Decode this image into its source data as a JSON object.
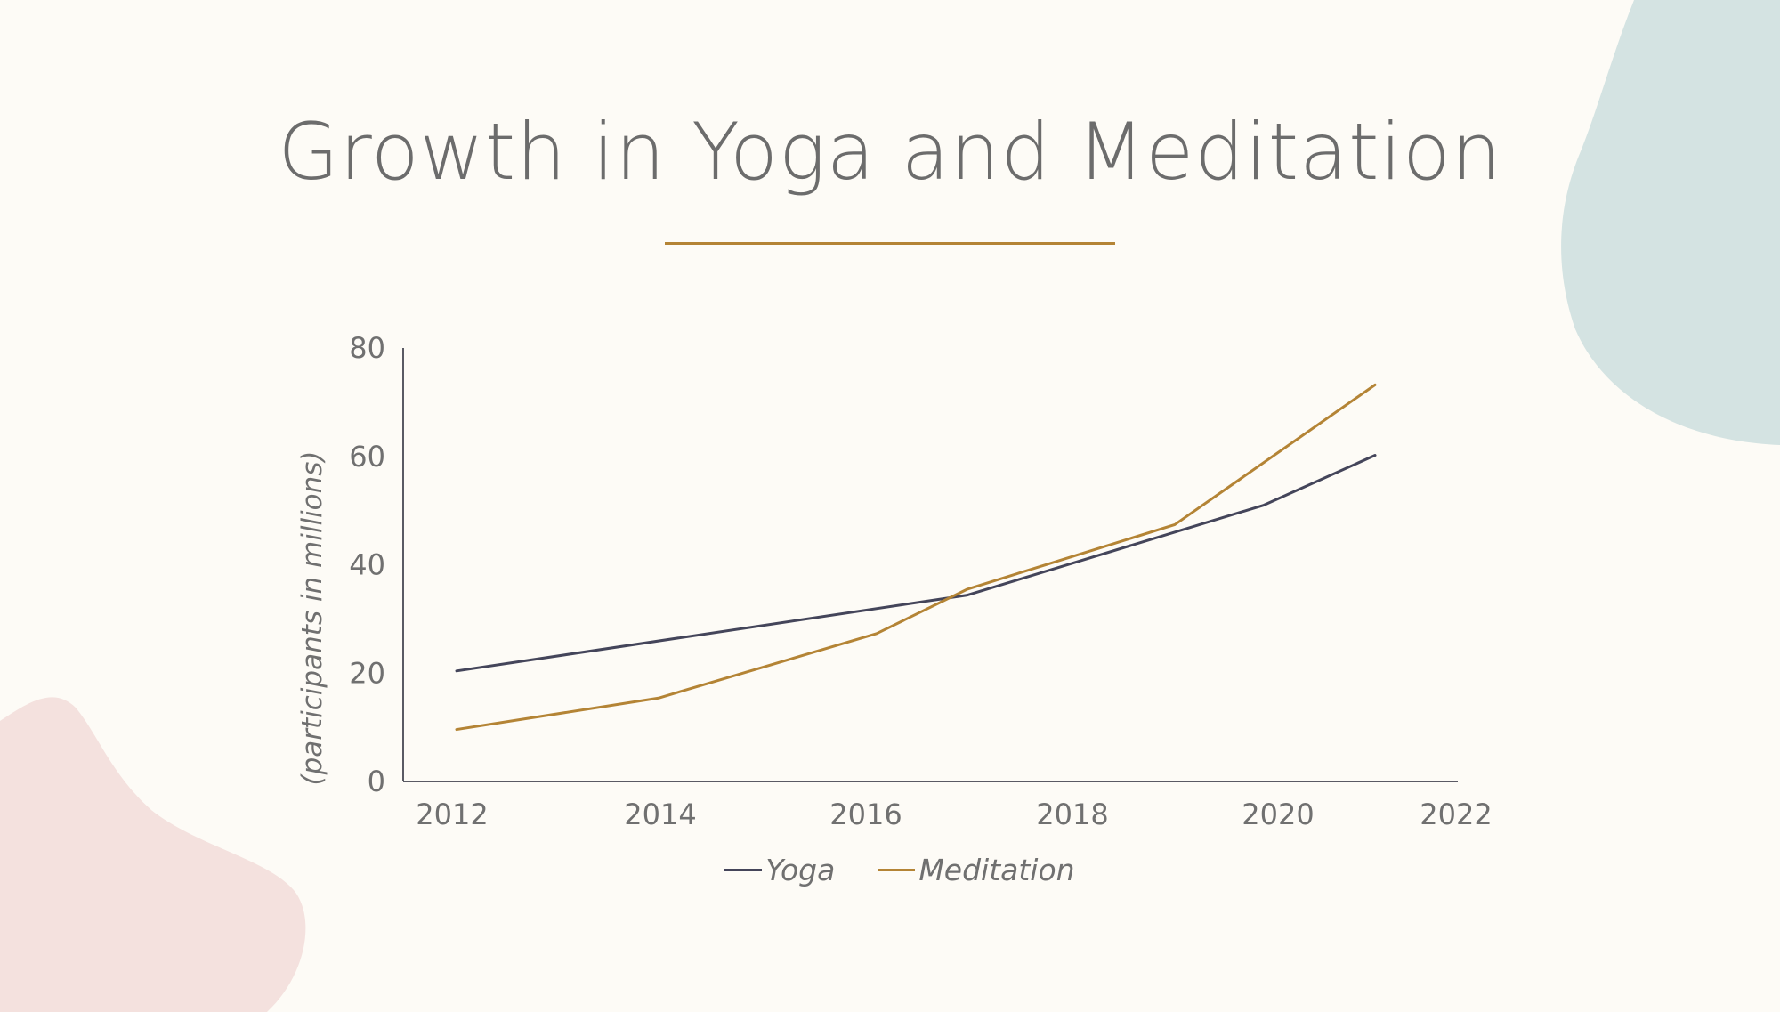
{
  "page": {
    "background": "#fdfbf6",
    "accent_color": "#b48435",
    "blob_colors": [
      "#d4e3e2",
      "#f4e1de"
    ]
  },
  "chart_data": {
    "type": "line",
    "title": "Growth in Yoga and Meditation",
    "xlabel": "",
    "ylabel": "(participants in millions)",
    "xlim": [
      2012,
      2022
    ],
    "ylim": [
      0,
      80
    ],
    "xticks": [
      2012,
      2014,
      2016,
      2018,
      2020,
      2022
    ],
    "yticks": [
      0,
      20,
      40,
      60,
      80
    ],
    "grid": false,
    "legend_position": "bottom",
    "series": [
      {
        "name": "Yoga",
        "color": "#44455a",
        "x": [
          2012,
          2017,
          2020,
          2021
        ],
        "y": [
          20.4,
          34.4,
          51,
          60.2
        ]
      },
      {
        "name": "Meditation",
        "color": "#b48435",
        "x": [
          2012,
          2014,
          2016,
          2017,
          2019,
          2021
        ],
        "y": [
          9.6,
          15.4,
          27.3,
          35.5,
          47.4,
          73.2
        ]
      }
    ]
  }
}
